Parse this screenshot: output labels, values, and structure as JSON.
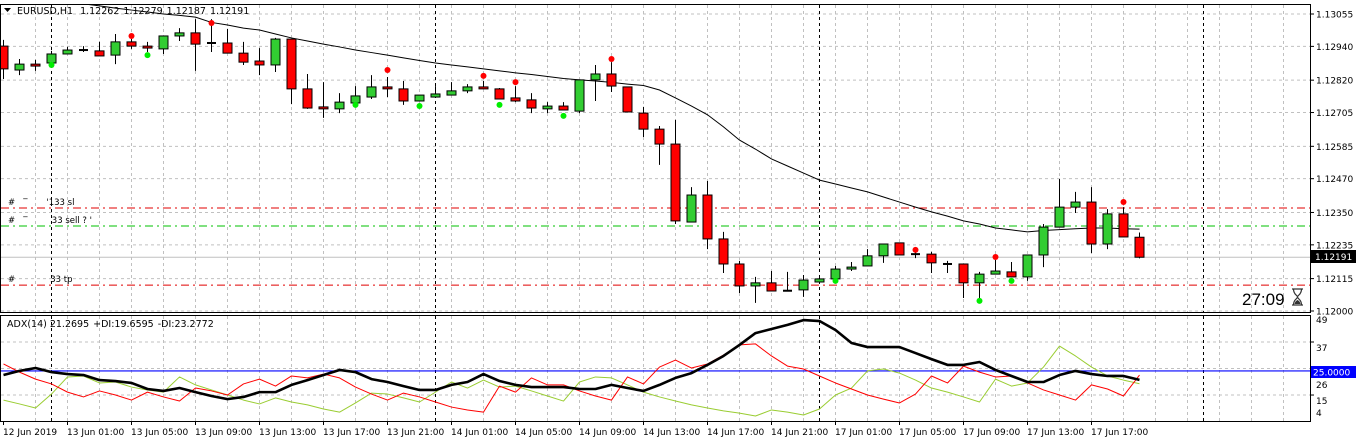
{
  "header": {
    "menu_icon": "triangle-down-icon",
    "symbol": "EURUSD,H1",
    "open": "1.12262",
    "high": "1.12279",
    "low": "1.12187",
    "close": "1.12191"
  },
  "indicator_header": {
    "adx": "ADX(14) 21.2695",
    "plus_di": "+DI:19.6595",
    "minus_di": "-DI:23.2772"
  },
  "countdown": "27:09",
  "countdown_icon": "hourglass-icon",
  "current_price_label": "1.12191",
  "adx_level_label": "25.0000",
  "order_lines": [
    {
      "label": "#   ‾       '133 sl",
      "price": 1.12366,
      "color": "#e00000"
    },
    {
      "label": "#   ‾         33 sell ? '",
      "price": 1.12302,
      "color": "#00c000"
    },
    {
      "label": "#             33 tp",
      "price": 1.12092,
      "color": "#e00000"
    }
  ],
  "colors": {
    "bull": "#32cd32",
    "bear": "#ff0000",
    "grid": "#c0c0c0",
    "ma": "#000000",
    "fractal_up": "#ff0000",
    "fractal_down": "#00ee00",
    "adx": "#000000",
    "plus_di": "#9acd32",
    "minus_di": "#ff0000",
    "level": "#0000ff",
    "current_price_line": "#c0c0c0"
  },
  "chart_data": [
    {
      "type": "candlestick",
      "title": "EURUSD,H1",
      "y_ticks": [
        "1.13055",
        "1.12940",
        "1.12820",
        "1.12705",
        "1.12585",
        "1.12470",
        "1.12350",
        "1.12235",
        "1.12115",
        "1.12000"
      ],
      "ylim": [
        1.12,
        1.13055
      ],
      "x_ticks": [
        {
          "index": 0,
          "label": "12 Jun 2019"
        },
        {
          "index": 4,
          "label": "13 Jun 01:00"
        },
        {
          "index": 8,
          "label": "13 Jun 05:00"
        },
        {
          "index": 12,
          "label": "13 Jun 09:00"
        },
        {
          "index": 16,
          "label": "13 Jun 13:00"
        },
        {
          "index": 20,
          "label": "13 Jun 17:00"
        },
        {
          "index": 24,
          "label": "13 Jun 21:00"
        },
        {
          "index": 28,
          "label": "14 Jun 01:00"
        },
        {
          "index": 32,
          "label": "14 Jun 05:00"
        },
        {
          "index": 36,
          "label": "14 Jun 09:00"
        },
        {
          "index": 40,
          "label": "14 Jun 13:00"
        },
        {
          "index": 44,
          "label": "14 Jun 17:00"
        },
        {
          "index": 48,
          "label": "14 Jun 21:00"
        },
        {
          "index": 52,
          "label": "17 Jun 01:00"
        },
        {
          "index": 56,
          "label": "17 Jun 05:00"
        },
        {
          "index": 60,
          "label": "17 Jun 09:00"
        },
        {
          "index": 64,
          "label": "17 Jun 13:00"
        },
        {
          "index": 68,
          "label": "17 Jun 17:00"
        }
      ],
      "day_separators": [
        3,
        27,
        51,
        75
      ],
      "ohlc": [
        [
          1.12941,
          1.12963,
          1.12824,
          1.1286
        ],
        [
          1.12856,
          1.12895,
          1.12838,
          1.12877
        ],
        [
          1.12877,
          1.12892,
          1.12853,
          1.1287
        ],
        [
          1.12881,
          1.12924,
          1.12867,
          1.12913
        ],
        [
          1.12913,
          1.12938,
          1.12913,
          1.12927
        ],
        [
          1.12927,
          1.12941,
          1.1292,
          1.12926
        ],
        [
          1.12924,
          1.12956,
          1.12906,
          1.12906
        ],
        [
          1.12909,
          1.12984,
          1.12877,
          1.12956
        ],
        [
          1.12956,
          1.12966,
          1.12931,
          1.12941
        ],
        [
          1.12941,
          1.12956,
          1.1292,
          1.12934
        ],
        [
          1.12931,
          1.12977,
          1.12913,
          1.12977
        ],
        [
          1.12977,
          1.13005,
          1.12959,
          1.12988
        ],
        [
          1.12988,
          1.13037,
          1.12853,
          1.12948
        ],
        [
          1.12952,
          1.13037,
          1.1292,
          1.12948
        ],
        [
          1.12952,
          1.13002,
          1.12916,
          1.12916
        ],
        [
          1.12916,
          1.12956,
          1.12874,
          1.12884
        ],
        [
          1.12888,
          1.12934,
          1.12838,
          1.12874
        ],
        [
          1.12874,
          1.1297,
          1.12849,
          1.12966
        ],
        [
          1.12966,
          1.12966,
          1.12735,
          1.12789
        ],
        [
          1.12789,
          1.12842,
          1.12718,
          1.12721
        ],
        [
          1.12725,
          1.12813,
          1.12686,
          1.12718
        ],
        [
          1.12718,
          1.12774,
          1.12703,
          1.12742
        ],
        [
          1.12739,
          1.12799,
          1.12739,
          1.12764
        ],
        [
          1.1276,
          1.12838,
          1.12753,
          1.12796
        ],
        [
          1.12796,
          1.12831,
          1.1276,
          1.12789
        ],
        [
          1.12789,
          1.12817,
          1.12732,
          1.12746
        ],
        [
          1.12746,
          1.12767,
          1.12746,
          1.12767
        ],
        [
          1.1276,
          1.12799,
          1.1276,
          1.12771
        ],
        [
          1.12767,
          1.12813,
          1.12767,
          1.12782
        ],
        [
          1.12782,
          1.12806,
          1.12774,
          1.12796
        ],
        [
          1.12796,
          1.12817,
          1.12789,
          1.12789
        ],
        [
          1.12789,
          1.12792,
          1.12753,
          1.12753
        ],
        [
          1.12757,
          1.12799,
          1.12742,
          1.12746
        ],
        [
          1.1275,
          1.12774,
          1.12703,
          1.12721
        ],
        [
          1.12718,
          1.12742,
          1.12703,
          1.12728
        ],
        [
          1.12728,
          1.12742,
          1.12714,
          1.12714
        ],
        [
          1.1271,
          1.12821,
          1.12703,
          1.12821
        ],
        [
          1.12821,
          1.12874,
          1.12746,
          1.12842
        ],
        [
          1.12842,
          1.12884,
          1.12778,
          1.12799
        ],
        [
          1.12796,
          1.12796,
          1.12707,
          1.12707
        ],
        [
          1.12703,
          1.12725,
          1.12618,
          1.12646
        ],
        [
          1.12646,
          1.12657,
          1.12519,
          1.12593
        ],
        [
          1.12593,
          1.12679,
          1.12309,
          1.1232
        ],
        [
          1.12316,
          1.1244,
          1.12316,
          1.12412
        ],
        [
          1.12412,
          1.12462,
          1.1222,
          1.12256
        ],
        [
          1.12256,
          1.12281,
          1.12135,
          1.12167
        ],
        [
          1.12167,
          1.12178,
          1.12064,
          1.12089
        ],
        [
          1.12089,
          1.12121,
          1.12029,
          1.121
        ],
        [
          1.121,
          1.12142,
          1.12071,
          1.12071
        ],
        [
          1.12071,
          1.12139,
          1.12071,
          1.12072
        ],
        [
          1.12075,
          1.12128,
          1.1205,
          1.1211
        ],
        [
          1.12103,
          1.12128,
          1.12103,
          1.12114
        ],
        [
          1.12114,
          1.1216,
          1.121,
          1.12149
        ],
        [
          1.12149,
          1.12174,
          1.12142,
          1.12156
        ],
        [
          1.1216,
          1.1222,
          1.1216,
          1.12196
        ],
        [
          1.12196,
          1.12238,
          1.12171,
          1.12238
        ],
        [
          1.12242,
          1.12242,
          1.12199,
          1.12199
        ],
        [
          1.12202,
          1.12217,
          1.12188,
          1.122
        ],
        [
          1.12202,
          1.1221,
          1.12135,
          1.12171
        ],
        [
          1.12167,
          1.12178,
          1.12135,
          1.12165
        ],
        [
          1.12167,
          1.12167,
          1.12046,
          1.121
        ],
        [
          1.121,
          1.12139,
          1.12046,
          1.12131
        ],
        [
          1.12131,
          1.12181,
          1.12131,
          1.12142
        ],
        [
          1.12139,
          1.12174,
          1.12121,
          1.12121
        ],
        [
          1.12121,
          1.12199,
          1.12107,
          1.12199
        ],
        [
          1.12199,
          1.12309,
          1.12156,
          1.12298
        ],
        [
          1.12298,
          1.12469,
          1.12298,
          1.12369
        ],
        [
          1.12369,
          1.12423,
          1.12348,
          1.12387
        ],
        [
          1.12387,
          1.1244,
          1.12206,
          1.12238
        ],
        [
          1.12238,
          1.12362,
          1.1222,
          1.12345
        ],
        [
          1.12345,
          1.12369,
          1.12263,
          1.12263
        ],
        [
          1.12262,
          1.12279,
          1.12187,
          1.12191
        ]
      ],
      "moving_average": [
        1.13126,
        1.13119,
        1.13112,
        1.13105,
        1.13098,
        1.13091,
        1.13084,
        1.13076,
        1.13069,
        1.13062,
        1.13055,
        1.1305,
        1.13044,
        1.13025,
        1.13016,
        1.13005,
        1.12998,
        1.12984,
        1.1297,
        1.12959,
        1.12948,
        1.12938,
        1.12927,
        1.12918,
        1.12909,
        1.12899,
        1.1289,
        1.12881,
        1.12874,
        1.12867,
        1.1286,
        1.12853,
        1.12846,
        1.1284,
        1.12833,
        1.12826,
        1.12821,
        1.12817,
        1.12812,
        1.12806,
        1.12801,
        1.12785,
        1.12757,
        1.12728,
        1.12697,
        1.12654,
        1.12607,
        1.12575,
        1.1254,
        1.12515,
        1.1249,
        1.12465,
        1.12451,
        1.12437,
        1.12423,
        1.12405,
        1.12387,
        1.12369,
        1.12352,
        1.12337,
        1.1232,
        1.12309,
        1.12295,
        1.12288,
        1.12281,
        1.12286,
        1.12289,
        1.12292,
        1.12295,
        1.12295,
        1.12292,
        1.12291
      ],
      "fractals": [
        {
          "index": 8,
          "price": 1.12977,
          "dir": "up"
        },
        {
          "index": 13,
          "price": 1.13023,
          "dir": "up"
        },
        {
          "index": 24,
          "price": 1.12856,
          "dir": "up"
        },
        {
          "index": 30,
          "price": 1.12835,
          "dir": "up"
        },
        {
          "index": 32,
          "price": 1.12813,
          "dir": "up"
        },
        {
          "index": 38,
          "price": 1.12895,
          "dir": "up"
        },
        {
          "index": 57,
          "price": 1.12217,
          "dir": "up"
        },
        {
          "index": 62,
          "price": 1.12192,
          "dir": "up"
        },
        {
          "index": 70,
          "price": 1.12387,
          "dir": "up"
        },
        {
          "index": 3,
          "price": 1.12874,
          "dir": "down"
        },
        {
          "index": 9,
          "price": 1.12909,
          "dir": "down"
        },
        {
          "index": 22,
          "price": 1.12732,
          "dir": "down"
        },
        {
          "index": 26,
          "price": 1.12728,
          "dir": "down"
        },
        {
          "index": 31,
          "price": 1.12732,
          "dir": "down"
        },
        {
          "index": 35,
          "price": 1.12693,
          "dir": "down"
        },
        {
          "index": 52,
          "price": 1.12107,
          "dir": "down"
        },
        {
          "index": 61,
          "price": 1.12036,
          "dir": "down"
        },
        {
          "index": 63,
          "price": 1.12107,
          "dir": "down"
        }
      ],
      "current_price": 1.12191
    },
    {
      "type": "line",
      "title": "ADX(14)",
      "y_ticks": [
        "49",
        "37",
        "26",
        "15",
        "4"
      ],
      "ylim": [
        4,
        49
      ],
      "level": 25,
      "series": [
        {
          "name": "ADX",
          "values": [
            23.3,
            25.0,
            26.2,
            24.5,
            23.7,
            23.3,
            21.2,
            20.8,
            20.0,
            17.5,
            16.7,
            17.9,
            16.2,
            14.6,
            13.3,
            14.2,
            16.2,
            16.2,
            19.2,
            21.2,
            23.3,
            25.4,
            24.5,
            21.6,
            20.4,
            18.7,
            17.1,
            17.1,
            19.2,
            20.4,
            23.7,
            20.8,
            19.2,
            18.3,
            18.3,
            18.3,
            17.5,
            17.5,
            19.2,
            17.9,
            16.7,
            19.2,
            22.1,
            24.1,
            27.5,
            31.2,
            35.8,
            40.7,
            42.4,
            44.1,
            46.1,
            45.7,
            42.0,
            36.6,
            34.9,
            34.9,
            34.9,
            32.4,
            29.9,
            27.5,
            27.5,
            28.7,
            25.4,
            22.9,
            20.4,
            20.4,
            23.3,
            25.0,
            23.7,
            22.9,
            22.9,
            21.27
          ]
        },
        {
          "name": "+DI",
          "values": [
            12.9,
            11.3,
            9.6,
            15.4,
            22.5,
            22.9,
            20.0,
            20.4,
            18.3,
            17.1,
            16.2,
            22.5,
            19.2,
            17.1,
            15.0,
            12.9,
            11.3,
            13.8,
            12.1,
            10.9,
            9.2,
            7.9,
            11.7,
            15.8,
            15.4,
            13.8,
            12.1,
            16.2,
            20.4,
            17.9,
            21.2,
            18.3,
            18.7,
            16.7,
            14.6,
            12.5,
            20.4,
            22.5,
            22.1,
            19.2,
            16.2,
            14.2,
            12.5,
            10.9,
            9.6,
            8.4,
            7.5,
            6.3,
            8.8,
            7.9,
            6.7,
            9.2,
            15.0,
            17.9,
            25.0,
            25.8,
            24.1,
            21.2,
            17.9,
            16.2,
            14.2,
            12.1,
            21.6,
            18.7,
            20.0,
            26.6,
            35.3,
            31.2,
            26.6,
            22.9,
            21.2,
            19.66
          ]
        },
        {
          "name": "-DI",
          "values": [
            27.9,
            24.5,
            21.6,
            19.6,
            16.2,
            14.2,
            16.7,
            15.0,
            12.9,
            16.2,
            14.2,
            12.5,
            17.9,
            16.7,
            15.0,
            19.6,
            21.6,
            18.7,
            22.9,
            22.1,
            23.7,
            22.1,
            18.3,
            15.4,
            12.9,
            15.8,
            14.2,
            12.1,
            10.0,
            8.8,
            7.9,
            18.7,
            16.2,
            22.1,
            19.2,
            19.2,
            16.7,
            14.6,
            12.9,
            22.5,
            19.6,
            26.6,
            29.5,
            26.2,
            27.9,
            31.6,
            35.8,
            36.2,
            31.2,
            27.0,
            25.8,
            22.9,
            20.0,
            17.5,
            15.0,
            13.3,
            11.7,
            15.4,
            22.9,
            20.0,
            27.0,
            24.5,
            22.5,
            22.9,
            20.0,
            17.1,
            15.0,
            12.9,
            19.2,
            17.5,
            14.6,
            23.28
          ]
        }
      ]
    }
  ]
}
